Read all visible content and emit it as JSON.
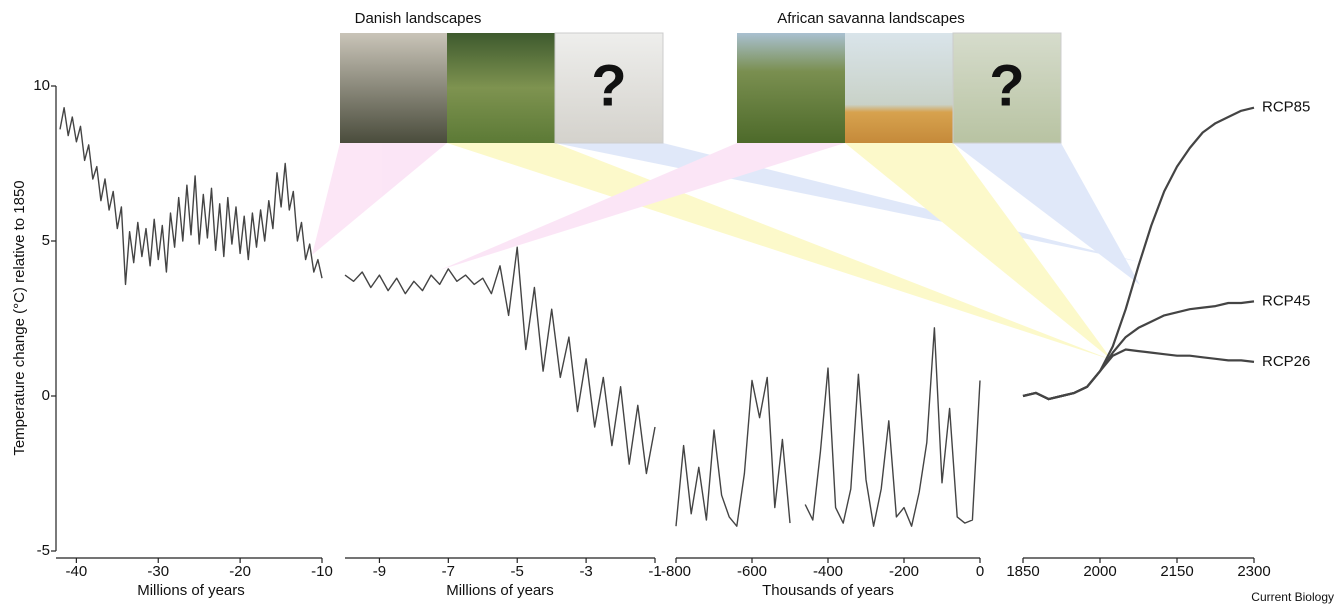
{
  "figure": {
    "panel_titles": [
      "Danish landscapes",
      "African savanna landscapes"
    ],
    "unknown_marks": [
      "?",
      "?"
    ],
    "credit": "Current Biology"
  },
  "chart_data": [
    {
      "type": "line",
      "y_label": "Temperature change (°C) relative to 1850",
      "x_label": "Millions of years",
      "color": "#444444",
      "xlim": [
        -42,
        -10
      ],
      "xticks": [
        -40,
        -30,
        -20,
        -10
      ],
      "ylim": [
        -5,
        10
      ],
      "yticks": [
        -5,
        0,
        5,
        10
      ],
      "x": [
        -42,
        -41.5,
        -41,
        -40.5,
        -40,
        -39.5,
        -39,
        -38.5,
        -38,
        -37.5,
        -37,
        -36.5,
        -36,
        -35.5,
        -35,
        -34.5,
        -34,
        -33.5,
        -33,
        -32.5,
        -32,
        -31.5,
        -31,
        -30.5,
        -30,
        -29.5,
        -29,
        -28.5,
        -28,
        -27.5,
        -27,
        -26.5,
        -26,
        -25.5,
        -25,
        -24.5,
        -24,
        -23.5,
        -23,
        -22.5,
        -22,
        -21.5,
        -21,
        -20.5,
        -20,
        -19.5,
        -19,
        -18.5,
        -18,
        -17.5,
        -17,
        -16.5,
        -16,
        -15.5,
        -15,
        -14.5,
        -14,
        -13.5,
        -13,
        -12.5,
        -12,
        -11.5,
        -11,
        -10.5,
        -10
      ],
      "values": [
        8.6,
        9.3,
        8.4,
        9.0,
        8.2,
        8.7,
        7.6,
        8.1,
        7.0,
        7.4,
        6.3,
        7.0,
        6.0,
        6.6,
        5.4,
        6.1,
        3.6,
        5.3,
        4.3,
        5.6,
        4.5,
        5.4,
        4.2,
        5.7,
        4.4,
        5.5,
        4.0,
        5.9,
        4.8,
        6.4,
        5.0,
        6.8,
        5.2,
        7.1,
        4.9,
        6.5,
        5.1,
        6.7,
        4.7,
        6.2,
        4.5,
        6.4,
        4.9,
        6.1,
        4.6,
        5.8,
        4.4,
        5.9,
        4.8,
        6.0,
        5.0,
        6.3,
        5.4,
        7.2,
        6.1,
        7.5,
        6.0,
        6.6,
        5.0,
        5.6,
        4.4,
        4.9,
        4.0,
        4.4,
        3.8
      ]
    },
    {
      "type": "line",
      "x_label": "Millions of years",
      "color": "#444444",
      "xlim": [
        -10,
        -1
      ],
      "xticks": [
        -9,
        -7,
        -5,
        -3,
        -1
      ],
      "ylim": [
        -5,
        10
      ],
      "x": [
        -10,
        -9.75,
        -9.5,
        -9.25,
        -9,
        -8.75,
        -8.5,
        -8.25,
        -8,
        -7.75,
        -7.5,
        -7.25,
        -7,
        -6.75,
        -6.5,
        -6.25,
        -6,
        -5.75,
        -5.5,
        -5.25,
        -5,
        -4.75,
        -4.5,
        -4.25,
        -4,
        -3.75,
        -3.5,
        -3.25,
        -3,
        -2.75,
        -2.5,
        -2.25,
        -2,
        -1.75,
        -1.5,
        -1.25,
        -1
      ],
      "values": [
        3.9,
        3.7,
        4.0,
        3.5,
        3.9,
        3.4,
        3.8,
        3.3,
        3.7,
        3.4,
        3.9,
        3.6,
        4.1,
        3.7,
        3.9,
        3.6,
        3.8,
        3.3,
        4.2,
        2.6,
        4.8,
        1.5,
        3.5,
        0.8,
        2.8,
        0.6,
        1.9,
        -0.5,
        1.2,
        -1.0,
        0.6,
        -1.6,
        0.3,
        -2.2,
        -0.3,
        -2.5,
        -1.0
      ]
    },
    {
      "type": "line",
      "x_label": "Thousands of years",
      "color": "#444444",
      "xlim": [
        -800,
        0
      ],
      "xticks": [
        -800,
        -600,
        -400,
        -200,
        0
      ],
      "ylim": [
        -5,
        10
      ],
      "x": [
        -800,
        -780,
        -760,
        -740,
        -720,
        -700,
        -680,
        -660,
        -640,
        -620,
        -600,
        -580,
        -560,
        -540,
        -520,
        -500,
        -480,
        -460,
        -440,
        -420,
        -400,
        -380,
        -360,
        -340,
        -320,
        -300,
        -280,
        -260,
        -240,
        -220,
        -200,
        -180,
        -160,
        -140,
        -120,
        -100,
        -80,
        -60,
        -40,
        -20,
        0
      ],
      "values": [
        -4.2,
        -1.6,
        -3.8,
        -2.3,
        -4.0,
        -1.1,
        -3.2,
        -3.9,
        -4.2,
        -2.5,
        0.5,
        -0.7,
        0.6,
        -3.6,
        -1.4,
        -4.1,
        null,
        -3.5,
        -4.0,
        -1.8,
        0.9,
        -3.6,
        -4.1,
        -3.0,
        0.7,
        -2.7,
        -4.2,
        -3.0,
        -0.8,
        -3.9,
        -3.6,
        -4.2,
        -3.1,
        -1.5,
        2.2,
        -2.8,
        -0.4,
        -3.9,
        -4.1,
        -4.0,
        0.5
      ]
    },
    {
      "type": "line",
      "color": "#444444",
      "xlim": [
        1850,
        2300
      ],
      "xticks": [
        1850,
        2000,
        2150,
        2300
      ],
      "ylim": [
        -5,
        10
      ],
      "x": [
        1850,
        1875,
        1900,
        1925,
        1950,
        1975,
        2000,
        2025,
        2050,
        2075,
        2100,
        2125,
        2150,
        2175,
        2200,
        2225,
        2250,
        2275,
        2300
      ],
      "series": [
        {
          "name": "RCP85",
          "color": "#444444",
          "values": [
            0.0,
            0.1,
            -0.1,
            0.0,
            0.1,
            0.3,
            0.8,
            1.6,
            2.8,
            4.2,
            5.5,
            6.6,
            7.4,
            8.0,
            8.5,
            8.8,
            9.0,
            9.2,
            9.3
          ]
        },
        {
          "name": "RCP45",
          "color": "#444444",
          "values": [
            0.0,
            0.1,
            -0.1,
            0.0,
            0.1,
            0.3,
            0.8,
            1.4,
            1.9,
            2.2,
            2.4,
            2.6,
            2.7,
            2.8,
            2.85,
            2.9,
            3.0,
            3.0,
            3.05
          ]
        },
        {
          "name": "RCP26",
          "color": "#444444",
          "values": [
            0.0,
            0.1,
            -0.1,
            0.0,
            0.1,
            0.3,
            0.8,
            1.3,
            1.5,
            1.45,
            1.4,
            1.35,
            1.3,
            1.3,
            1.25,
            1.2,
            1.15,
            1.15,
            1.1
          ]
        }
      ]
    }
  ]
}
